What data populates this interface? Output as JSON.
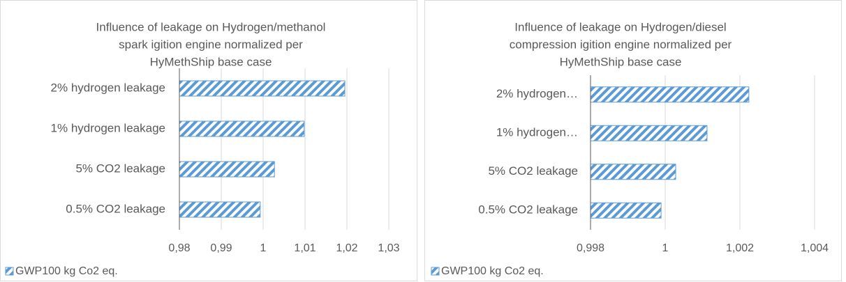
{
  "chart_data": [
    {
      "type": "bar",
      "orientation": "horizontal",
      "title": [
        "Influence of leakage on Hydrogen/methanol",
        "spark igition engine normalized per",
        "HyMethShip base case"
      ],
      "categories": [
        "2% hydrogen leakage",
        "1% hydrogen leakage",
        "5% CO2 leakage",
        "0.5% CO2 leakage"
      ],
      "series": [
        {
          "name": "GWP100 kg Co2 eq.",
          "color": "#5b9bd5",
          "values": [
            1.0195,
            1.0098,
            1.0027,
            0.9993
          ]
        }
      ],
      "xlim": [
        0.98,
        1.03
      ],
      "xticks": [
        {
          "value": 0.98,
          "label": "0,98"
        },
        {
          "value": 0.99,
          "label": "0,99"
        },
        1,
        {
          "value": 1.01,
          "label": "1,01"
        },
        {
          "value": 1.02,
          "label": "1,02"
        },
        {
          "value": 1.03,
          "label": "1,03"
        }
      ],
      "grid": true,
      "legend": "bottom-left"
    },
    {
      "type": "bar",
      "orientation": "horizontal",
      "title": [
        "Influence of leakage on Hydrogen/diesel",
        "compression igition engine normalized per",
        "HyMethShip base case"
      ],
      "categories": [
        "2% hydrogen…",
        "1% hydrogen…",
        "5% CO2 leakage",
        "0.5% CO2 leakage"
      ],
      "series": [
        {
          "name": "GWP100 kg Co2 eq.",
          "color": "#5b9bd5",
          "values": [
            1.00224,
            1.00112,
            1.00028,
            0.99989
          ]
        }
      ],
      "xlim": [
        0.998,
        1.004
      ],
      "xticks": [
        {
          "value": 0.998,
          "label": "0,998"
        },
        1,
        {
          "value": 1.002,
          "label": "1,002"
        },
        {
          "value": 1.004,
          "label": "1,004"
        }
      ],
      "grid": true,
      "legend": "bottom-left"
    }
  ]
}
